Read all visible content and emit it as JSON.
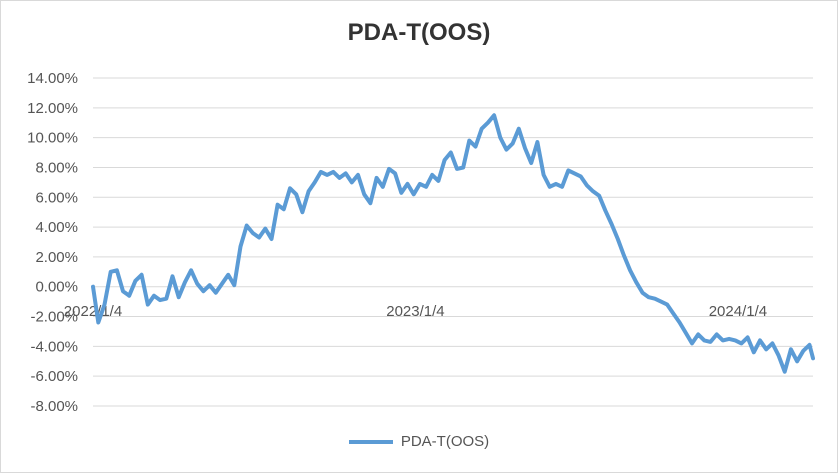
{
  "chart_data": {
    "type": "line",
    "title": "PDA-T(OOS)",
    "xlabel": "",
    "ylabel": "",
    "y_ticks": [
      "14.00%",
      "12.00%",
      "10.00%",
      "8.00%",
      "6.00%",
      "4.00%",
      "2.00%",
      "0.00%",
      "-2.00%",
      "-4.00%",
      "-6.00%",
      "-8.00%"
    ],
    "ylim": [
      -8,
      14
    ],
    "y_unit": "%",
    "x_ticks": [
      "2022/1/4",
      "2023/1/4",
      "2024/1/4"
    ],
    "xlim": [
      "2022-01-04",
      "2024-03-29"
    ],
    "grid": "horizontal",
    "legend_position": "bottom",
    "series": [
      {
        "name": "PDA-T(OOS)",
        "color": "#5b9bd5",
        "points": [
          [
            "2022-01-04",
            0.0
          ],
          [
            "2022-01-10",
            -2.4
          ],
          [
            "2022-01-17",
            -1.2
          ],
          [
            "2022-01-24",
            1.0
          ],
          [
            "2022-01-31",
            1.1
          ],
          [
            "2022-02-07",
            -0.3
          ],
          [
            "2022-02-14",
            -0.6
          ],
          [
            "2022-02-21",
            0.4
          ],
          [
            "2022-02-28",
            0.8
          ],
          [
            "2022-03-07",
            -1.2
          ],
          [
            "2022-03-14",
            -0.6
          ],
          [
            "2022-03-21",
            -0.9
          ],
          [
            "2022-03-28",
            -0.8
          ],
          [
            "2022-04-04",
            0.7
          ],
          [
            "2022-04-11",
            -0.7
          ],
          [
            "2022-04-18",
            0.3
          ],
          [
            "2022-04-25",
            1.1
          ],
          [
            "2022-05-02",
            0.2
          ],
          [
            "2022-05-09",
            -0.3
          ],
          [
            "2022-05-16",
            0.1
          ],
          [
            "2022-05-23",
            -0.4
          ],
          [
            "2022-06-06",
            0.8
          ],
          [
            "2022-06-13",
            0.1
          ],
          [
            "2022-06-20",
            2.7
          ],
          [
            "2022-06-27",
            4.1
          ],
          [
            "2022-07-04",
            3.6
          ],
          [
            "2022-07-11",
            3.3
          ],
          [
            "2022-07-18",
            3.9
          ],
          [
            "2022-07-25",
            3.2
          ],
          [
            "2022-08-01",
            5.5
          ],
          [
            "2022-08-08",
            5.2
          ],
          [
            "2022-08-15",
            6.6
          ],
          [
            "2022-08-22",
            6.2
          ],
          [
            "2022-08-29",
            5.0
          ],
          [
            "2022-09-05",
            6.4
          ],
          [
            "2022-09-12",
            7.0
          ],
          [
            "2022-09-19",
            7.7
          ],
          [
            "2022-09-26",
            7.5
          ],
          [
            "2022-10-03",
            7.7
          ],
          [
            "2022-10-10",
            7.3
          ],
          [
            "2022-10-17",
            7.6
          ],
          [
            "2022-10-24",
            7.0
          ],
          [
            "2022-10-31",
            7.5
          ],
          [
            "2022-11-07",
            6.2
          ],
          [
            "2022-11-14",
            5.6
          ],
          [
            "2022-11-21",
            7.3
          ],
          [
            "2022-11-28",
            6.7
          ],
          [
            "2022-12-05",
            7.9
          ],
          [
            "2022-12-12",
            7.6
          ],
          [
            "2022-12-19",
            6.3
          ],
          [
            "2022-12-26",
            6.9
          ],
          [
            "2023-01-02",
            6.2
          ],
          [
            "2023-01-09",
            6.9
          ],
          [
            "2023-01-16",
            6.7
          ],
          [
            "2023-01-23",
            7.5
          ],
          [
            "2023-01-30",
            7.1
          ],
          [
            "2023-02-06",
            8.5
          ],
          [
            "2023-02-13",
            9.0
          ],
          [
            "2023-02-20",
            7.9
          ],
          [
            "2023-02-27",
            8.0
          ],
          [
            "2023-03-06",
            9.8
          ],
          [
            "2023-03-13",
            9.4
          ],
          [
            "2023-03-20",
            10.6
          ],
          [
            "2023-03-27",
            11.0
          ],
          [
            "2023-04-03",
            11.5
          ],
          [
            "2023-04-10",
            10.0
          ],
          [
            "2023-04-17",
            9.2
          ],
          [
            "2023-04-24",
            9.6
          ],
          [
            "2023-05-01",
            10.6
          ],
          [
            "2023-05-08",
            9.3
          ],
          [
            "2023-05-15",
            8.3
          ],
          [
            "2023-05-22",
            9.7
          ],
          [
            "2023-05-29",
            7.5
          ],
          [
            "2023-06-05",
            6.7
          ],
          [
            "2023-06-12",
            6.9
          ],
          [
            "2023-06-19",
            6.7
          ],
          [
            "2023-06-26",
            7.8
          ],
          [
            "2023-07-03",
            7.6
          ],
          [
            "2023-07-10",
            7.4
          ],
          [
            "2023-07-17",
            6.8
          ],
          [
            "2023-07-24",
            6.4
          ],
          [
            "2023-07-31",
            6.1
          ],
          [
            "2023-08-07",
            5.1
          ],
          [
            "2023-08-14",
            4.2
          ],
          [
            "2023-08-21",
            3.2
          ],
          [
            "2023-08-28",
            2.1
          ],
          [
            "2023-09-04",
            1.1
          ],
          [
            "2023-09-11",
            0.3
          ],
          [
            "2023-09-18",
            -0.4
          ],
          [
            "2023-09-25",
            -0.7
          ],
          [
            "2023-10-02",
            -0.8
          ],
          [
            "2023-10-09",
            -1.0
          ],
          [
            "2023-10-16",
            -1.2
          ],
          [
            "2023-10-23",
            -1.8
          ],
          [
            "2023-10-30",
            -2.4
          ],
          [
            "2023-11-06",
            -3.1
          ],
          [
            "2023-11-13",
            -3.8
          ],
          [
            "2023-11-20",
            -3.2
          ],
          [
            "2023-11-27",
            -3.6
          ],
          [
            "2023-12-04",
            -3.7
          ],
          [
            "2023-12-11",
            -3.2
          ],
          [
            "2023-12-18",
            -3.6
          ],
          [
            "2023-12-25",
            -3.5
          ],
          [
            "2024-01-01",
            -3.6
          ],
          [
            "2024-01-08",
            -3.8
          ],
          [
            "2024-01-15",
            -3.4
          ],
          [
            "2024-01-22",
            -4.4
          ],
          [
            "2024-01-29",
            -3.6
          ],
          [
            "2024-02-05",
            -4.2
          ],
          [
            "2024-02-12",
            -3.8
          ],
          [
            "2024-02-19",
            -4.6
          ],
          [
            "2024-02-26",
            -5.7
          ],
          [
            "2024-03-04",
            -4.2
          ],
          [
            "2024-03-11",
            -5.0
          ],
          [
            "2024-03-18",
            -4.3
          ],
          [
            "2024-03-25",
            -3.9
          ],
          [
            "2024-03-29",
            -4.8
          ]
        ]
      }
    ]
  }
}
